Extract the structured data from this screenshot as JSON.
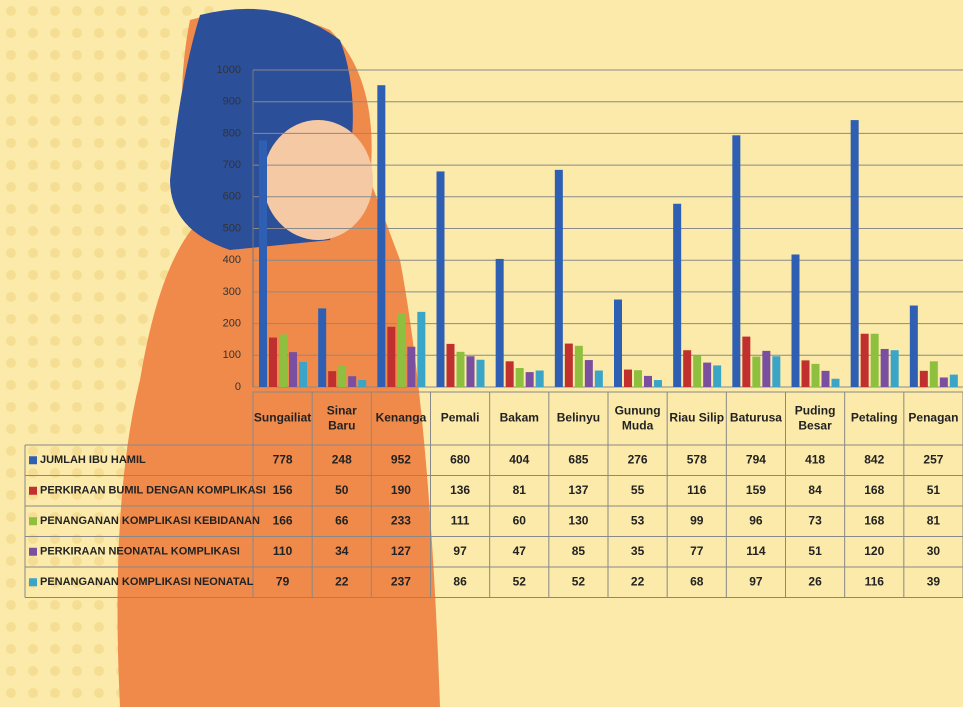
{
  "chart_data": {
    "type": "bar",
    "categories": [
      "Sungailiat",
      "Sinar Baru",
      "Kenanga",
      "Pemali",
      "Bakam",
      "Belinyu",
      "Gunung Muda",
      "Riau Silip",
      "Baturusa",
      "Puding Besar",
      "Petaling",
      "Penagan"
    ],
    "series": [
      {
        "name": "JUMLAH IBU HAMIL",
        "color": "#2f5fb3",
        "values": [
          778,
          248,
          952,
          680,
          404,
          685,
          276,
          578,
          794,
          418,
          842,
          257
        ]
      },
      {
        "name": "PERKIRAAN BUMIL DENGAN KOMPLIKASI",
        "color": "#c0302e",
        "values": [
          156,
          50,
          190,
          136,
          81,
          137,
          55,
          116,
          159,
          84,
          168,
          51
        ]
      },
      {
        "name": "PENANGANAN KOMPLIKASI KEBIDANAN",
        "color": "#8fbf3f",
        "values": [
          166,
          66,
          233,
          111,
          60,
          130,
          53,
          99,
          96,
          73,
          168,
          81
        ]
      },
      {
        "name": "PERKIRAAN NEONATAL KOMPLIKASI",
        "color": "#7a4fa0",
        "values": [
          110,
          34,
          127,
          97,
          47,
          85,
          35,
          77,
          114,
          51,
          120,
          30
        ]
      },
      {
        "name": "PENANGANAN KOMPLIKASI NEONATAL",
        "color": "#3ba5c8",
        "values": [
          79,
          22,
          237,
          86,
          52,
          52,
          22,
          68,
          97,
          26,
          116,
          39
        ]
      }
    ],
    "ylim": [
      0,
      1000
    ],
    "yticks": [
      0,
      100,
      200,
      300,
      400,
      500,
      600,
      700,
      800,
      900,
      1000
    ],
    "grid": true
  }
}
